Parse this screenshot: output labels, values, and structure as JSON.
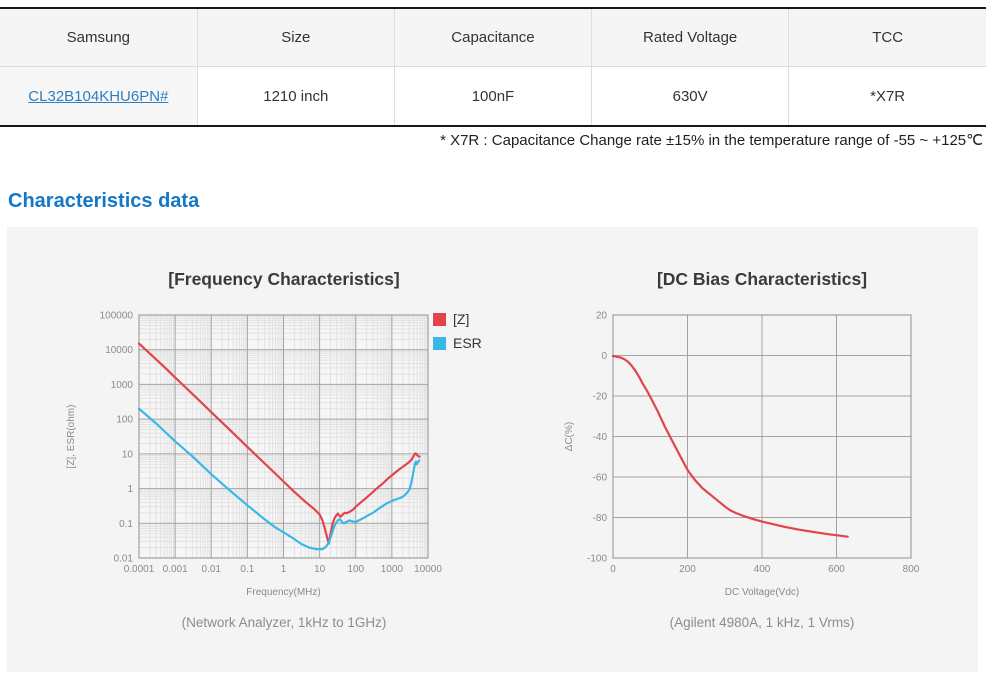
{
  "table": {
    "headers": [
      "Samsung",
      "Size",
      "Capacitance",
      "Rated Voltage",
      "TCC"
    ],
    "row": {
      "part_link": "CL32B104KHU6PN#",
      "size": "1210 inch",
      "capacitance": "100nF",
      "rated_voltage": "630V",
      "tcc": "*X7R"
    }
  },
  "note": "* X7R : Capacitance Change rate ±15%  in the temperature range of -55 ~ +125℃",
  "section_title": "Characteristics data",
  "colors": {
    "accent_blue": "#1478c8",
    "link_blue": "#2e7fc0",
    "z_red": "#e2434c",
    "esr_blue": "#3bb7e7",
    "grid_major": "#a3a3a3",
    "grid_minor": "#e2e2e2",
    "panel_bg": "#f4f4f4"
  },
  "chart_data": [
    {
      "type": "line",
      "title": "[Frequency Characteristics]",
      "xlabel": "Frequency(MHz)",
      "ylabel": "[Z], ESR(ohm)",
      "caption": "(Network Analyzer, 1kHz to 1GHz)",
      "xscale": "log",
      "yscale": "log",
      "xlim": [
        0.0001,
        10000
      ],
      "ylim": [
        0.01,
        100000
      ],
      "xticks": [
        "0.0001",
        "0.001",
        "0.01",
        "0.1",
        "1",
        "10",
        "100",
        "1000",
        "10000"
      ],
      "yticks": [
        "100000",
        "10000",
        "1000",
        "100",
        "10",
        "1",
        "0.1",
        "0.01"
      ],
      "legend_position": "right-top",
      "grid": "major+minor",
      "legend": [
        {
          "label": "[Z]",
          "color": "#e2434c"
        },
        {
          "label": "ESR",
          "color": "#3bb7e7"
        }
      ],
      "series": [
        {
          "name": "[Z]",
          "color": "#e2434c",
          "points": [
            [
              0.0001,
              15000
            ],
            [
              0.0005,
              3200
            ],
            [
              0.001,
              1590
            ],
            [
              0.005,
              320
            ],
            [
              0.01,
              159
            ],
            [
              0.05,
              32
            ],
            [
              0.1,
              15.9
            ],
            [
              0.5,
              3.2
            ],
            [
              1,
              1.6
            ],
            [
              2,
              0.8
            ],
            [
              4,
              0.42
            ],
            [
              7,
              0.26
            ],
            [
              10,
              0.18
            ],
            [
              12,
              0.12
            ],
            [
              14,
              0.07
            ],
            [
              16,
              0.04
            ],
            [
              18,
              0.026
            ],
            [
              20,
              0.05
            ],
            [
              23,
              0.1
            ],
            [
              26,
              0.14
            ],
            [
              29,
              0.17
            ],
            [
              32,
              0.19
            ],
            [
              35,
              0.165
            ],
            [
              38,
              0.155
            ],
            [
              42,
              0.17
            ],
            [
              46,
              0.19
            ],
            [
              50,
              0.2
            ],
            [
              55,
              0.195
            ],
            [
              60,
              0.2
            ],
            [
              70,
              0.22
            ],
            [
              85,
              0.25
            ],
            [
              100,
              0.3
            ],
            [
              150,
              0.43
            ],
            [
              200,
              0.55
            ],
            [
              300,
              0.8
            ],
            [
              400,
              1.05
            ],
            [
              600,
              1.5
            ],
            [
              800,
              2.0
            ],
            [
              1000,
              2.4
            ],
            [
              1500,
              3.4
            ],
            [
              2000,
              4.2
            ],
            [
              2500,
              5.0
            ],
            [
              3000,
              5.8
            ],
            [
              3500,
              6.8
            ],
            [
              4000,
              8.6
            ],
            [
              4300,
              10.0
            ],
            [
              4600,
              10.3
            ],
            [
              5000,
              9.3
            ],
            [
              5400,
              8.6
            ],
            [
              5800,
              8.3
            ]
          ]
        },
        {
          "name": "ESR",
          "color": "#3bb7e7",
          "points": [
            [
              0.0001,
              200
            ],
            [
              0.0003,
              75
            ],
            [
              0.001,
              23
            ],
            [
              0.003,
              8.5
            ],
            [
              0.01,
              2.6
            ],
            [
              0.03,
              0.95
            ],
            [
              0.1,
              0.33
            ],
            [
              0.3,
              0.13
            ],
            [
              0.6,
              0.075
            ],
            [
              1,
              0.055
            ],
            [
              2,
              0.035
            ],
            [
              3,
              0.026
            ],
            [
              5,
              0.02
            ],
            [
              8,
              0.018
            ],
            [
              12,
              0.018
            ],
            [
              15,
              0.021
            ],
            [
              18,
              0.028
            ],
            [
              21,
              0.045
            ],
            [
              24,
              0.07
            ],
            [
              27,
              0.095
            ],
            [
              30,
              0.11
            ],
            [
              33,
              0.125
            ],
            [
              36,
              0.13
            ],
            [
              39,
              0.12
            ],
            [
              43,
              0.105
            ],
            [
              48,
              0.1
            ],
            [
              54,
              0.108
            ],
            [
              60,
              0.115
            ],
            [
              68,
              0.12
            ],
            [
              78,
              0.115
            ],
            [
              90,
              0.11
            ],
            [
              100,
              0.11
            ],
            [
              130,
              0.125
            ],
            [
              170,
              0.145
            ],
            [
              220,
              0.17
            ],
            [
              300,
              0.2
            ],
            [
              400,
              0.25
            ],
            [
              550,
              0.31
            ],
            [
              700,
              0.37
            ],
            [
              900,
              0.42
            ],
            [
              1100,
              0.46
            ],
            [
              1400,
              0.5
            ],
            [
              1800,
              0.55
            ],
            [
              2200,
              0.62
            ],
            [
              2700,
              0.78
            ],
            [
              3100,
              0.95
            ],
            [
              3400,
              1.4
            ],
            [
              3800,
              2.4
            ],
            [
              4100,
              3.8
            ],
            [
              4400,
              5.3
            ],
            [
              4650,
              6.0
            ],
            [
              4900,
              5.0
            ],
            [
              5300,
              5.8
            ],
            [
              5700,
              6.4
            ]
          ]
        }
      ]
    },
    {
      "type": "line",
      "title": "[DC Bias Characteristics]",
      "xlabel": "DC Voltage(Vdc)",
      "ylabel": "ΔC(%)",
      "caption": "(Agilent 4980A, 1 kHz, 1 Vrms)",
      "xscale": "linear",
      "yscale": "linear",
      "xlim": [
        0,
        800
      ],
      "ylim": [
        -100,
        20
      ],
      "xticks": [
        "0",
        "200",
        "400",
        "600",
        "800"
      ],
      "yticks": [
        "20",
        "0",
        "-20",
        "-40",
        "-60",
        "-80",
        "-100"
      ],
      "legend_position": "none",
      "grid": "major",
      "legend": [],
      "series": [
        {
          "name": "ΔC",
          "color": "#e2434c",
          "points": [
            [
              0,
              -0.3
            ],
            [
              10,
              -0.6
            ],
            [
              20,
              -1.0
            ],
            [
              30,
              -1.8
            ],
            [
              40,
              -3.0
            ],
            [
              50,
              -5.0
            ],
            [
              60,
              -7.5
            ],
            [
              70,
              -10.5
            ],
            [
              80,
              -14.0
            ],
            [
              90,
              -17.0
            ],
            [
              100,
              -20.5
            ],
            [
              110,
              -24.0
            ],
            [
              120,
              -27.5
            ],
            [
              130,
              -31.5
            ],
            [
              140,
              -35.5
            ],
            [
              150,
              -39.0
            ],
            [
              160,
              -42.5
            ],
            [
              170,
              -46.0
            ],
            [
              180,
              -49.5
            ],
            [
              190,
              -53.0
            ],
            [
              200,
              -56.5
            ],
            [
              210,
              -59.0
            ],
            [
              220,
              -61.5
            ],
            [
              230,
              -63.5
            ],
            [
              240,
              -65.5
            ],
            [
              250,
              -67.0
            ],
            [
              260,
              -68.5
            ],
            [
              270,
              -70.0
            ],
            [
              280,
              -71.5
            ],
            [
              290,
              -73.0
            ],
            [
              300,
              -74.5
            ],
            [
              315,
              -76.5
            ],
            [
              330,
              -77.8
            ],
            [
              350,
              -79.2
            ],
            [
              375,
              -80.7
            ],
            [
              400,
              -82.0
            ],
            [
              430,
              -83.3
            ],
            [
              460,
              -84.6
            ],
            [
              500,
              -86.0
            ],
            [
              540,
              -87.2
            ],
            [
              580,
              -88.3
            ],
            [
              610,
              -89.0
            ],
            [
              630,
              -89.5
            ]
          ]
        }
      ]
    }
  ]
}
